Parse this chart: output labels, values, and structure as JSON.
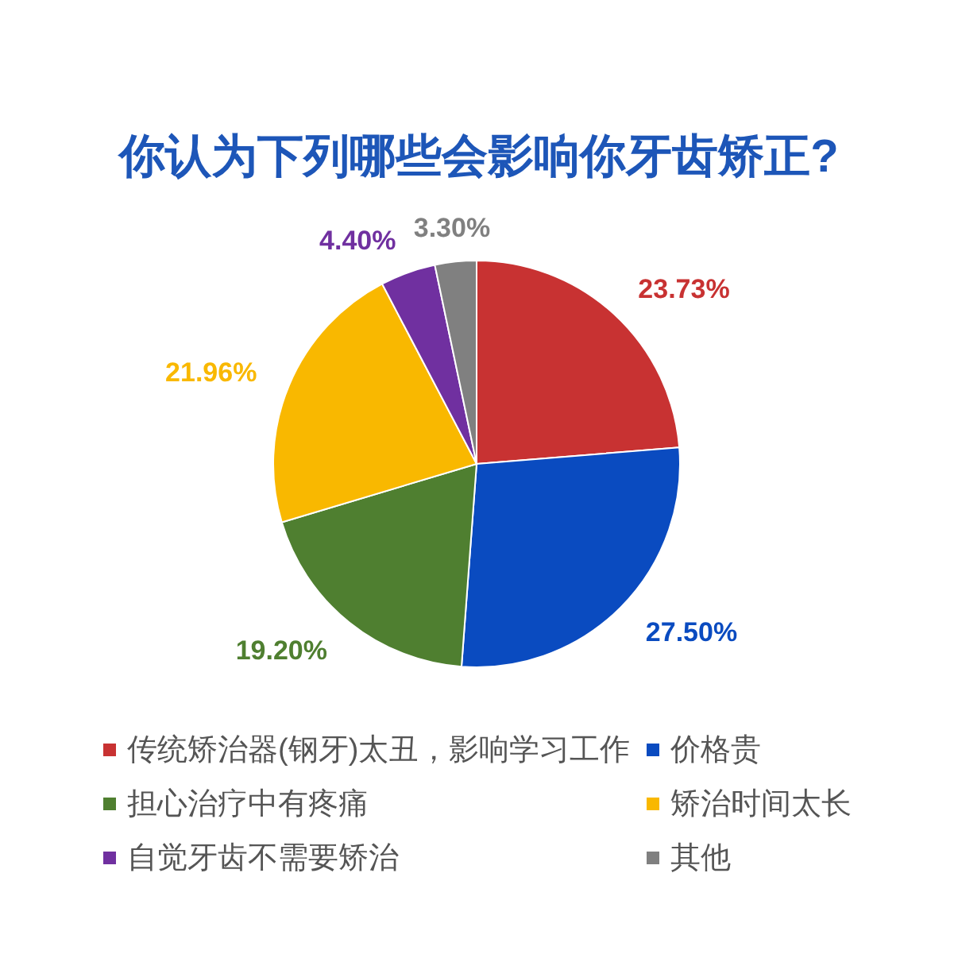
{
  "chart_data": {
    "type": "pie",
    "title": "你认为下列哪些会影响你牙齿矫正?",
    "categories": [
      "传统矫治器(钢牙)太丑，影响学习工作",
      "价格贵",
      "担心治疗中有疼痛",
      "矫治时间太长",
      "自觉牙齿不需要矫治",
      "其他"
    ],
    "values": [
      23.73,
      27.5,
      19.2,
      21.96,
      4.4,
      3.3
    ],
    "colors": [
      "#c83232",
      "#0a4bc0",
      "#4f7f30",
      "#f9b800",
      "#7030a0",
      "#808080"
    ],
    "value_labels": [
      "23.73%",
      "27.50%",
      "19.20%",
      "21.96%",
      "4.40%",
      "3.30%"
    ],
    "legend": "bottom"
  }
}
